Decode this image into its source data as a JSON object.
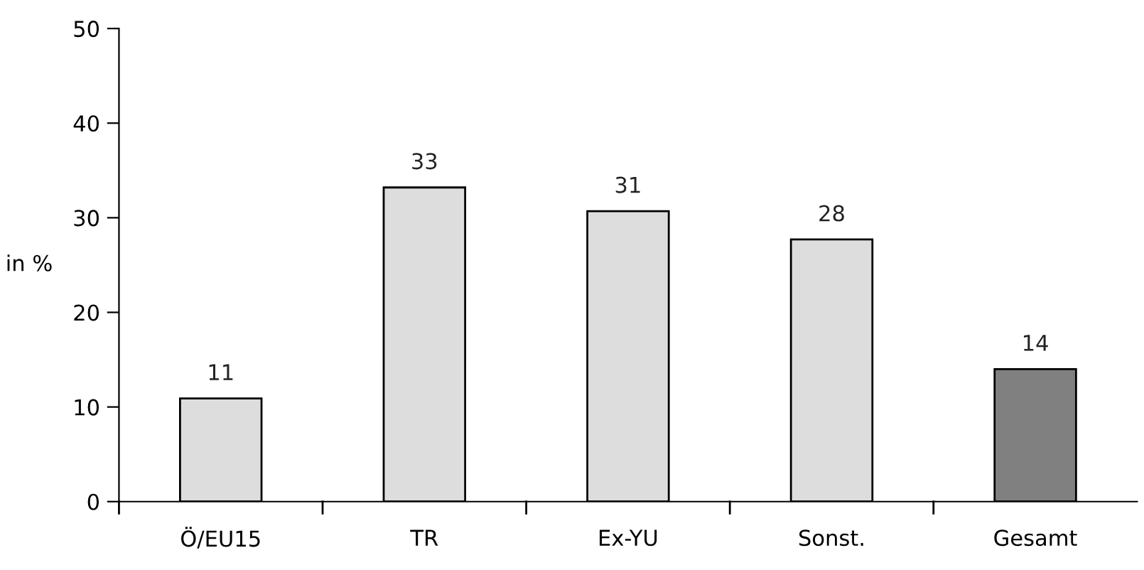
{
  "chart_data": {
    "type": "bar",
    "ylabel": "in %",
    "categories": [
      "Ö/EU15",
      "TR",
      "Ex-YU",
      "Sonst.",
      "Gesamt"
    ],
    "values": [
      10.9,
      33.2,
      30.7,
      27.7,
      14.0
    ],
    "value_labels": [
      "11",
      "33",
      "31",
      "28",
      "14"
    ],
    "colors": [
      "#dddddd",
      "#dddddd",
      "#dddddd",
      "#dddddd",
      "#808080"
    ],
    "ylim": [
      0,
      50
    ],
    "yticks": [
      0,
      10,
      20,
      30,
      40,
      50
    ],
    "grid": false,
    "legend": false
  }
}
